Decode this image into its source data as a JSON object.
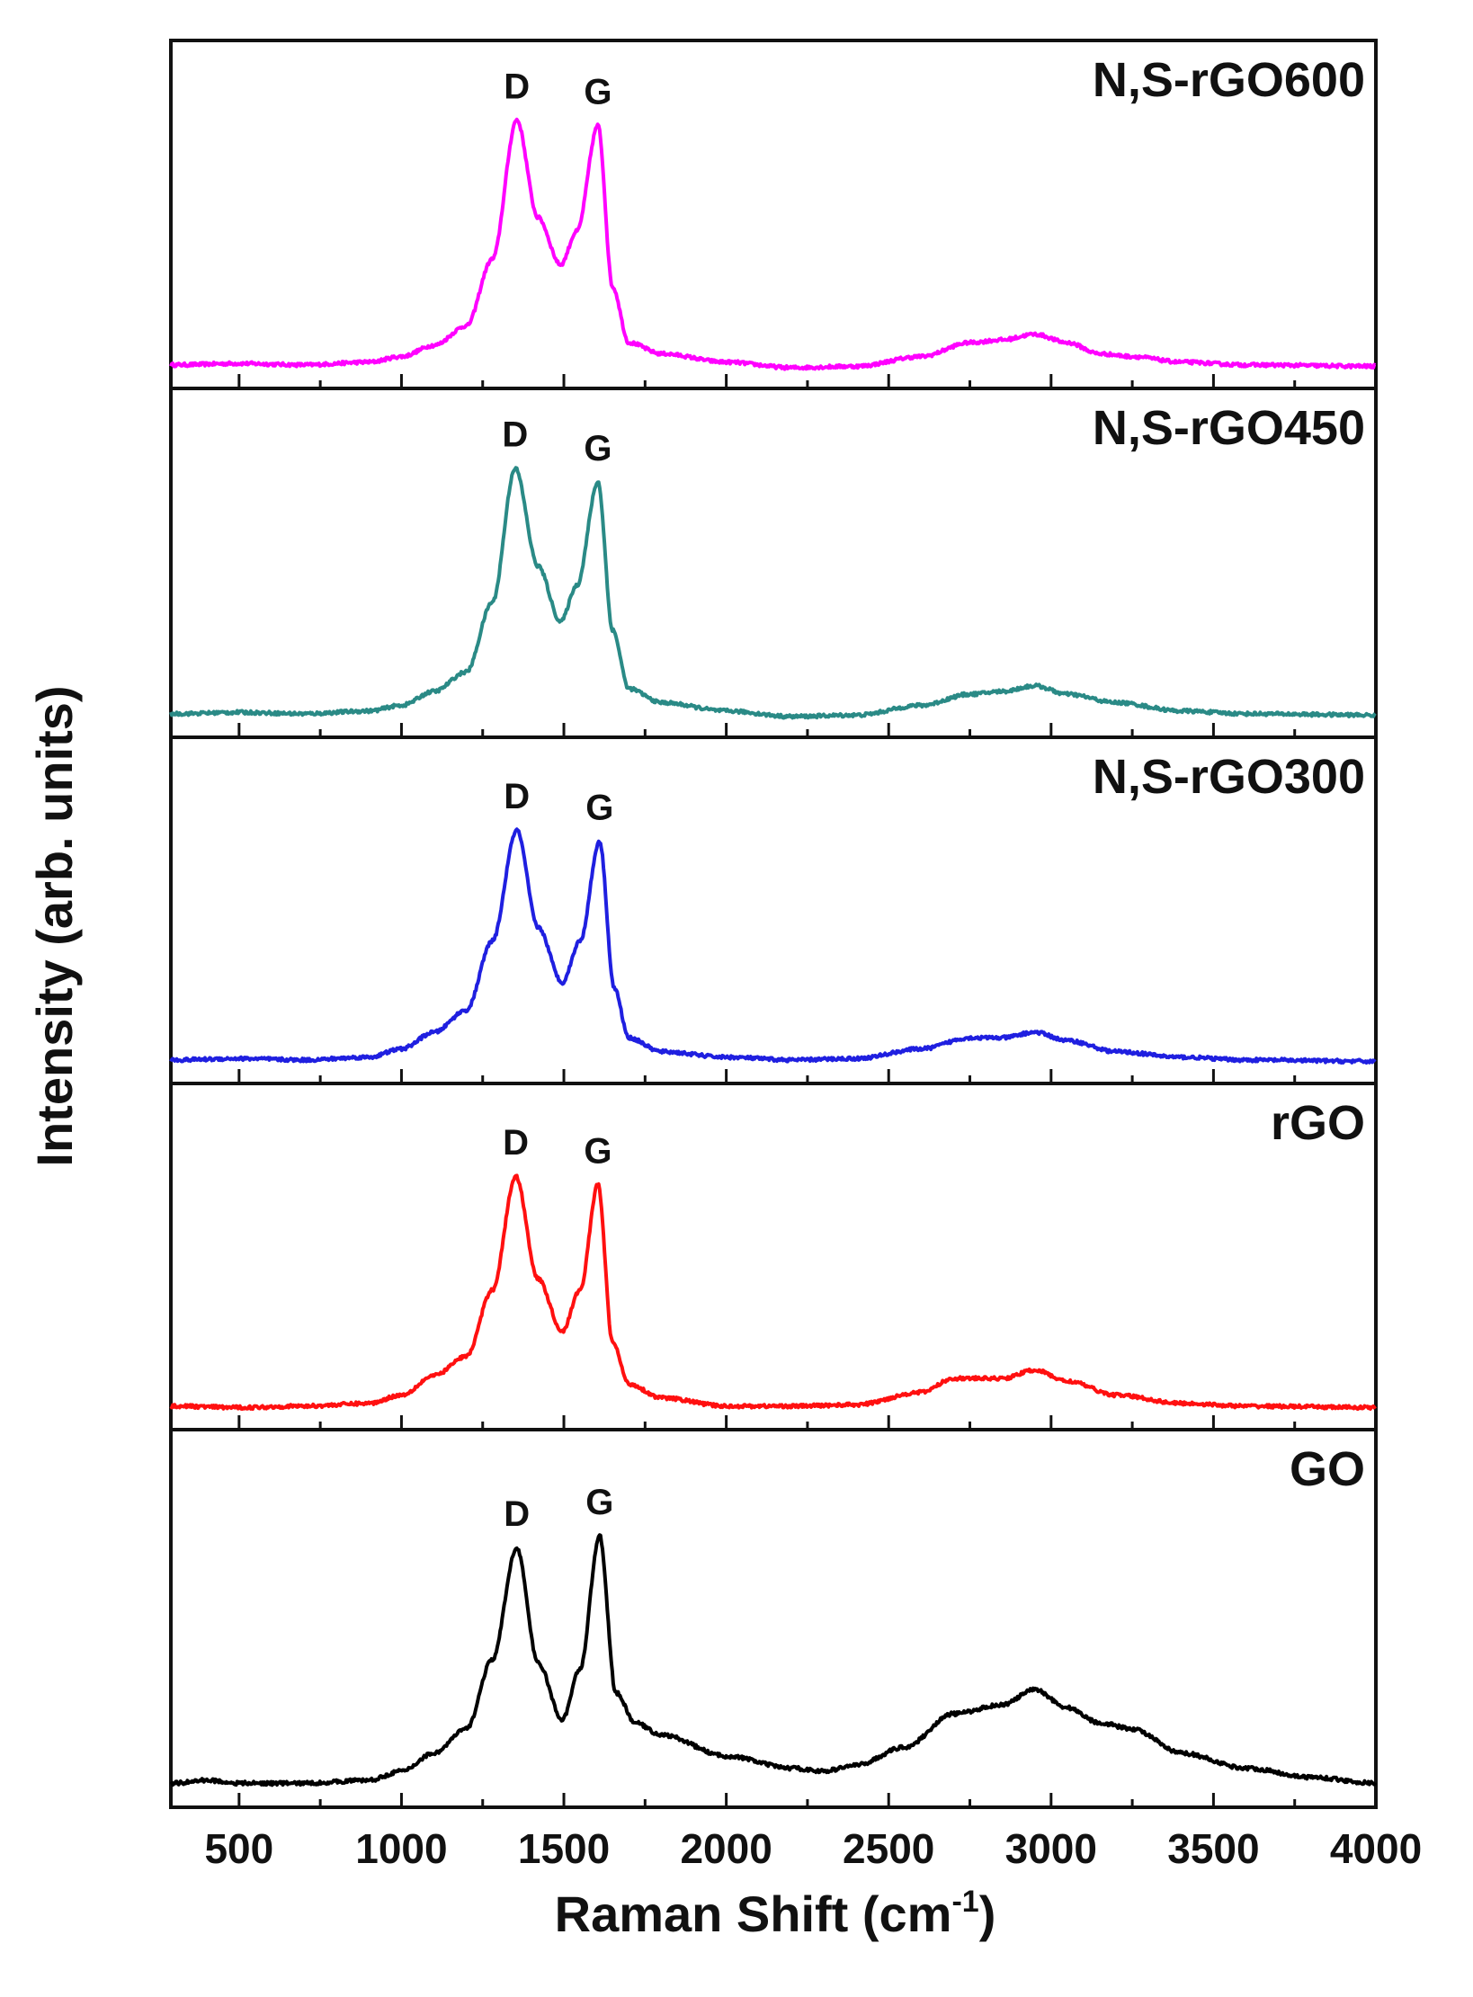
{
  "chart_data": {
    "type": "line",
    "title": "",
    "xlabel": "Raman Shift (cm",
    "xlabel_sup": "-1",
    "xlabel_end": ")",
    "ylabel": "Intensity (arb. units)",
    "xlim": [
      290,
      4000
    ],
    "ylim": [
      0,
      1
    ],
    "x_ticks": [
      500,
      1000,
      1500,
      2000,
      2500,
      3000,
      3500,
      4000
    ],
    "x_tick_labels": [
      "500",
      "1000",
      "1500",
      "2000",
      "2500",
      "3000",
      "3500",
      "4000"
    ],
    "peak_labels": [
      "D",
      "G"
    ],
    "series": [
      {
        "name": "N,S-rGO600",
        "color": "#ff00ff",
        "peaks": [
          {
            "label": "D",
            "x": 1355,
            "y": 0.9
          },
          {
            "label": "G",
            "x": 1605,
            "y": 0.88
          }
        ],
        "profile": [
          [
            300,
            0.02
          ],
          [
            500,
            0.025
          ],
          [
            700,
            0.02
          ],
          [
            900,
            0.03
          ],
          [
            1000,
            0.05
          ],
          [
            1100,
            0.09
          ],
          [
            1200,
            0.16
          ],
          [
            1280,
            0.4
          ],
          [
            1355,
            0.9
          ],
          [
            1420,
            0.55
          ],
          [
            1490,
            0.38
          ],
          [
            1540,
            0.5
          ],
          [
            1605,
            0.88
          ],
          [
            1650,
            0.3
          ],
          [
            1700,
            0.1
          ],
          [
            1800,
            0.06
          ],
          [
            2000,
            0.03
          ],
          [
            2200,
            0.01
          ],
          [
            2400,
            0.015
          ],
          [
            2600,
            0.05
          ],
          [
            2750,
            0.1
          ],
          [
            2850,
            0.11
          ],
          [
            2950,
            0.13
          ],
          [
            3050,
            0.1
          ],
          [
            3150,
            0.06
          ],
          [
            3250,
            0.05
          ],
          [
            3400,
            0.03
          ],
          [
            3600,
            0.02
          ],
          [
            4000,
            0.015
          ]
        ]
      },
      {
        "name": "N,S-rGO450",
        "color": "#2a8a86",
        "peaks": [
          {
            "label": "D",
            "x": 1350,
            "y": 0.9
          },
          {
            "label": "G",
            "x": 1605,
            "y": 0.85
          }
        ],
        "profile": [
          [
            300,
            0.02
          ],
          [
            500,
            0.025
          ],
          [
            700,
            0.02
          ],
          [
            900,
            0.03
          ],
          [
            1000,
            0.05
          ],
          [
            1100,
            0.1
          ],
          [
            1200,
            0.17
          ],
          [
            1280,
            0.42
          ],
          [
            1350,
            0.9
          ],
          [
            1420,
            0.55
          ],
          [
            1490,
            0.35
          ],
          [
            1540,
            0.48
          ],
          [
            1605,
            0.85
          ],
          [
            1650,
            0.32
          ],
          [
            1700,
            0.11
          ],
          [
            1800,
            0.06
          ],
          [
            2000,
            0.03
          ],
          [
            2200,
            0.01
          ],
          [
            2400,
            0.015
          ],
          [
            2600,
            0.05
          ],
          [
            2750,
            0.09
          ],
          [
            2850,
            0.1
          ],
          [
            2950,
            0.12
          ],
          [
            3050,
            0.09
          ],
          [
            3200,
            0.06
          ],
          [
            3400,
            0.03
          ],
          [
            3600,
            0.02
          ],
          [
            4000,
            0.015
          ]
        ]
      },
      {
        "name": "N,S-rGO300",
        "color": "#1f1fe0",
        "peaks": [
          {
            "label": "D",
            "x": 1355,
            "y": 0.85
          },
          {
            "label": "G",
            "x": 1610,
            "y": 0.81
          }
        ],
        "profile": [
          [
            300,
            0.02
          ],
          [
            500,
            0.025
          ],
          [
            700,
            0.02
          ],
          [
            900,
            0.03
          ],
          [
            1000,
            0.06
          ],
          [
            1100,
            0.12
          ],
          [
            1200,
            0.2
          ],
          [
            1280,
            0.45
          ],
          [
            1355,
            0.85
          ],
          [
            1420,
            0.5
          ],
          [
            1495,
            0.3
          ],
          [
            1550,
            0.45
          ],
          [
            1610,
            0.81
          ],
          [
            1655,
            0.28
          ],
          [
            1700,
            0.1
          ],
          [
            1800,
            0.05
          ],
          [
            2000,
            0.03
          ],
          [
            2200,
            0.02
          ],
          [
            2400,
            0.025
          ],
          [
            2600,
            0.06
          ],
          [
            2750,
            0.1
          ],
          [
            2850,
            0.1
          ],
          [
            2950,
            0.12
          ],
          [
            3050,
            0.09
          ],
          [
            3200,
            0.05
          ],
          [
            3400,
            0.03
          ],
          [
            3600,
            0.02
          ],
          [
            4000,
            0.015
          ]
        ]
      },
      {
        "name": "rGO",
        "color": "#ff1010",
        "peaks": [
          {
            "label": "D",
            "x": 1352,
            "y": 0.85
          },
          {
            "label": "G",
            "x": 1605,
            "y": 0.82
          }
        ],
        "profile": [
          [
            300,
            0.02
          ],
          [
            500,
            0.015
          ],
          [
            700,
            0.02
          ],
          [
            900,
            0.03
          ],
          [
            1000,
            0.06
          ],
          [
            1100,
            0.13
          ],
          [
            1200,
            0.2
          ],
          [
            1280,
            0.44
          ],
          [
            1352,
            0.85
          ],
          [
            1420,
            0.48
          ],
          [
            1495,
            0.29
          ],
          [
            1550,
            0.44
          ],
          [
            1605,
            0.82
          ],
          [
            1650,
            0.25
          ],
          [
            1700,
            0.1
          ],
          [
            1800,
            0.05
          ],
          [
            2000,
            0.02
          ],
          [
            2200,
            0.02
          ],
          [
            2400,
            0.025
          ],
          [
            2600,
            0.07
          ],
          [
            2700,
            0.12
          ],
          [
            2850,
            0.12
          ],
          [
            2950,
            0.15
          ],
          [
            3050,
            0.11
          ],
          [
            3200,
            0.06
          ],
          [
            3400,
            0.03
          ],
          [
            3600,
            0.02
          ],
          [
            4000,
            0.015
          ]
        ]
      },
      {
        "name": "GO",
        "color": "#000000",
        "peaks": [
          {
            "label": "D",
            "x": 1355,
            "y": 0.8
          },
          {
            "label": "G",
            "x": 1610,
            "y": 0.84
          }
        ],
        "profile": [
          [
            300,
            0.02
          ],
          [
            400,
            0.03
          ],
          [
            500,
            0.02
          ],
          [
            700,
            0.02
          ],
          [
            900,
            0.03
          ],
          [
            1000,
            0.06
          ],
          [
            1100,
            0.12
          ],
          [
            1200,
            0.2
          ],
          [
            1280,
            0.43
          ],
          [
            1355,
            0.8
          ],
          [
            1420,
            0.42
          ],
          [
            1495,
            0.23
          ],
          [
            1550,
            0.4
          ],
          [
            1610,
            0.84
          ],
          [
            1660,
            0.32
          ],
          [
            1720,
            0.22
          ],
          [
            1800,
            0.18
          ],
          [
            2000,
            0.11
          ],
          [
            2200,
            0.07
          ],
          [
            2300,
            0.06
          ],
          [
            2400,
            0.08
          ],
          [
            2550,
            0.14
          ],
          [
            2700,
            0.25
          ],
          [
            2850,
            0.28
          ],
          [
            2950,
            0.33
          ],
          [
            3050,
            0.27
          ],
          [
            3150,
            0.22
          ],
          [
            3250,
            0.2
          ],
          [
            3400,
            0.12
          ],
          [
            3600,
            0.07
          ],
          [
            3800,
            0.04
          ],
          [
            4000,
            0.02
          ]
        ]
      }
    ]
  }
}
